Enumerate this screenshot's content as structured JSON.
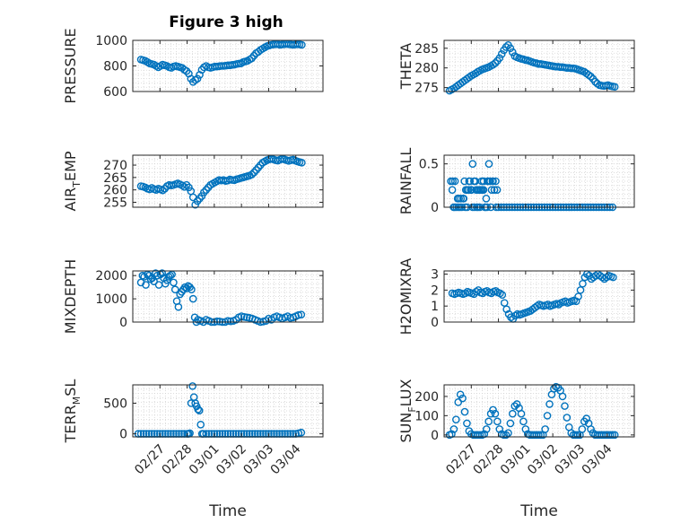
{
  "figure_title": "Figure 3 high",
  "colors": {
    "marker": "#0072bd",
    "axis": "#262626",
    "grid": "#d3d3d3"
  },
  "chart_data": [
    {
      "id": "pressure",
      "type": "scatter",
      "ylabel": "PRESSURE",
      "xlim": [
        0,
        7
      ],
      "ylim": [
        600,
        1000
      ],
      "yticks": [
        600,
        800,
        1000
      ],
      "ytick_labels": [
        "600",
        "800",
        "1000"
      ],
      "x": [
        0.3,
        0.38,
        0.46,
        0.54,
        0.62,
        0.7,
        0.78,
        0.86,
        0.94,
        1.02,
        1.1,
        1.18,
        1.26,
        1.34,
        1.42,
        1.5,
        1.58,
        1.66,
        1.74,
        1.82,
        1.9,
        1.98,
        2.06,
        2.14,
        2.22,
        2.3,
        2.38,
        2.46,
        2.54,
        2.62,
        2.7,
        2.78,
        2.86,
        2.94,
        3.02,
        3.1,
        3.18,
        3.26,
        3.34,
        3.42,
        3.5,
        3.58,
        3.66,
        3.74,
        3.82,
        3.9,
        3.98,
        4.06,
        4.14,
        4.22,
        4.3,
        4.38,
        4.46,
        4.54,
        4.62,
        4.7,
        4.78,
        4.86,
        4.94,
        5.02,
        5.1,
        5.18,
        5.26,
        5.34,
        5.42,
        5.5,
        5.58,
        5.66,
        5.74,
        5.82,
        5.9,
        5.98,
        6.06,
        6.14,
        6.22
      ],
      "y": [
        850,
        845,
        840,
        830,
        820,
        815,
        810,
        800,
        790,
        800,
        810,
        805,
        800,
        790,
        785,
        795,
        800,
        795,
        790,
        785,
        770,
        760,
        740,
        700,
        675,
        690,
        700,
        730,
        770,
        790,
        800,
        790,
        785,
        790,
        795,
        795,
        798,
        800,
        800,
        802,
        805,
        805,
        808,
        810,
        815,
        818,
        820,
        830,
        835,
        840,
        850,
        860,
        880,
        900,
        910,
        925,
        935,
        945,
        955,
        960,
        965,
        968,
        970,
        970,
        965,
        968,
        970,
        972,
        970,
        968,
        965,
        968,
        970,
        968,
        965
      ]
    },
    {
      "id": "theta",
      "type": "scatter",
      "ylabel": "THETA",
      "xlim": [
        0,
        7
      ],
      "ylim": [
        274,
        287
      ],
      "yticks": [
        275,
        280,
        285
      ],
      "ytick_labels": [
        "275",
        "280",
        "285"
      ],
      "x": [
        0.2,
        0.28,
        0.36,
        0.44,
        0.52,
        0.6,
        0.68,
        0.76,
        0.84,
        0.92,
        1.0,
        1.08,
        1.16,
        1.24,
        1.32,
        1.4,
        1.48,
        1.56,
        1.64,
        1.72,
        1.8,
        1.88,
        1.96,
        2.04,
        2.12,
        2.2,
        2.28,
        2.36,
        2.44,
        2.52,
        2.6,
        2.68,
        2.76,
        2.84,
        2.92,
        3.0,
        3.08,
        3.16,
        3.24,
        3.32,
        3.4,
        3.48,
        3.56,
        3.64,
        3.72,
        3.8,
        3.88,
        3.96,
        4.04,
        4.12,
        4.2,
        4.28,
        4.36,
        4.44,
        4.52,
        4.6,
        4.68,
        4.76,
        4.84,
        4.92,
        5.0,
        5.08,
        5.16,
        5.24,
        5.32,
        5.4,
        5.48,
        5.56,
        5.64,
        5.72,
        5.8,
        5.88,
        5.96,
        6.04,
        6.12,
        6.2,
        6.28
      ],
      "y": [
        274.2,
        274.5,
        274.8,
        275.2,
        275.6,
        276,
        276.4,
        276.8,
        277.2,
        277.6,
        278,
        278.3,
        278.6,
        279,
        279.3,
        279.6,
        279.8,
        280,
        280.2,
        280.5,
        280.8,
        281.2,
        281.8,
        282.5,
        283.5,
        284.5,
        285.3,
        285.8,
        285,
        284,
        283,
        282.7,
        282.5,
        282.3,
        282.2,
        282,
        281.9,
        281.7,
        281.5,
        281.3,
        281.2,
        281,
        281,
        280.9,
        280.8,
        280.7,
        280.6,
        280.5,
        280.4,
        280.3,
        280.3,
        280.2,
        280.2,
        280.1,
        280,
        280,
        279.9,
        279.9,
        279.8,
        279.6,
        279.4,
        279.2,
        279,
        278.6,
        278.2,
        277.8,
        277.2,
        276.5,
        276,
        275.6,
        275.5,
        275.4,
        275.5,
        275.6,
        275.4,
        275.3,
        275.2
      ]
    },
    {
      "id": "air_temp",
      "type": "scatter",
      "ylabel": "AIR_TEMP",
      "xlim": [
        0,
        7
      ],
      "ylim": [
        253,
        274
      ],
      "yticks": [
        255,
        260,
        265,
        270
      ],
      "ytick_labels": [
        "255",
        "260",
        "265",
        "270"
      ],
      "x": [
        0.3,
        0.38,
        0.46,
        0.54,
        0.62,
        0.7,
        0.78,
        0.86,
        0.94,
        1.02,
        1.1,
        1.18,
        1.26,
        1.34,
        1.42,
        1.5,
        1.58,
        1.66,
        1.74,
        1.82,
        1.9,
        1.98,
        2.06,
        2.14,
        2.22,
        2.3,
        2.38,
        2.46,
        2.54,
        2.62,
        2.7,
        2.78,
        2.86,
        2.94,
        3.02,
        3.1,
        3.18,
        3.26,
        3.34,
        3.42,
        3.5,
        3.58,
        3.66,
        3.74,
        3.82,
        3.9,
        3.98,
        4.06,
        4.14,
        4.22,
        4.3,
        4.38,
        4.46,
        4.54,
        4.62,
        4.7,
        4.78,
        4.86,
        4.94,
        5.02,
        5.1,
        5.18,
        5.26,
        5.34,
        5.42,
        5.5,
        5.58,
        5.66,
        5.74,
        5.82,
        5.9,
        5.98,
        6.06,
        6.14,
        6.22
      ],
      "y": [
        261.5,
        261.3,
        261,
        260.5,
        260.2,
        260.8,
        260.3,
        260,
        260.5,
        260.2,
        259.8,
        260.5,
        261.5,
        262,
        261.8,
        262,
        262.3,
        262.6,
        262.2,
        261.8,
        261.2,
        262,
        261,
        259.5,
        257,
        254,
        255.5,
        256.5,
        257.5,
        259,
        260,
        261,
        262,
        262.5,
        263,
        263.5,
        264,
        263.8,
        264,
        263.6,
        263.8,
        264.2,
        264,
        263.9,
        264.3,
        264.5,
        264.8,
        265,
        265.3,
        265.5,
        265.8,
        266.2,
        267,
        268,
        269,
        270,
        271,
        271.5,
        272,
        272.3,
        272.5,
        272.3,
        272,
        271.8,
        272.2,
        272.5,
        272.3,
        272,
        271.7,
        272,
        272.2,
        271.8,
        271.5,
        271.2,
        271
      ]
    },
    {
      "id": "rainfall",
      "type": "scatter",
      "ylabel": "RAINFALL",
      "xlim": [
        0,
        7
      ],
      "ylim": [
        0,
        0.6
      ],
      "yticks": [
        0,
        0.5
      ],
      "ytick_labels": [
        "0",
        "0.5"
      ],
      "x": [
        0.25,
        0.32,
        0.38,
        0.45,
        0.52,
        0.58,
        0.65,
        0.72,
        0.78,
        0.85,
        0.92,
        0.98,
        1.05,
        1.12,
        1.18,
        1.25,
        1.32,
        1.38,
        1.45,
        1.52,
        1.58,
        1.65,
        1.72,
        1.78,
        1.85,
        1.92,
        0.4,
        0.55,
        0.7,
        0.85,
        1.0,
        1.15,
        1.3,
        1.45,
        1.6,
        1.75,
        1.9,
        0.62,
        0.8,
        0.95,
        1.1,
        1.25,
        1.4,
        1.55,
        1.7,
        0.3,
        0.9,
        1.2,
        1.5,
        1.8,
        0.35,
        0.75,
        1.05,
        1.35,
        1.65,
        1.95,
        0.5,
        1.45,
        1.0,
        1.6,
        2.0,
        2.1,
        2.2,
        2.3,
        2.4,
        2.5,
        2.6,
        2.7,
        2.8,
        2.9,
        3.0,
        3.1,
        3.2,
        3.3,
        3.4,
        3.5,
        3.6,
        3.7,
        3.8,
        3.9,
        4.0,
        4.1,
        4.2,
        4.3,
        4.4,
        4.5,
        4.6,
        4.7,
        4.8,
        4.9,
        5.0,
        5.1,
        5.2,
        5.3,
        5.4,
        5.5,
        5.6,
        5.7,
        5.8,
        5.9,
        6.0,
        6.1,
        6.2
      ],
      "y": [
        0.3,
        0.3,
        0,
        0,
        0,
        0,
        0,
        0.1,
        0,
        0,
        0.3,
        0.2,
        0,
        0,
        0.2,
        0,
        0,
        0.3,
        0.2,
        0,
        0,
        0.3,
        0,
        0.3,
        0.2,
        0,
        0.3,
        0.1,
        0.1,
        0.2,
        0.2,
        0.3,
        0.2,
        0.3,
        0.3,
        0.2,
        0.3,
        0.1,
        0.2,
        0.3,
        0.3,
        0.2,
        0.2,
        0.1,
        0.3,
        0.2,
        0.2,
        0,
        0,
        0.3,
        0,
        0.3,
        0.5,
        0.2,
        0.5,
        0.2,
        0.1,
        0.3,
        0.2,
        0.3,
        0,
        0,
        0,
        0,
        0,
        0,
        0,
        0,
        0,
        0,
        0,
        0,
        0,
        0,
        0,
        0,
        0,
        0,
        0,
        0,
        0,
        0,
        0,
        0,
        0,
        0,
        0,
        0,
        0,
        0,
        0,
        0,
        0,
        0,
        0,
        0,
        0,
        0,
        0,
        0,
        0,
        0,
        0
      ]
    },
    {
      "id": "mixdepth",
      "type": "scatter",
      "ylabel": "MIXDEPTH",
      "xlim": [
        0,
        7
      ],
      "ylim": [
        0,
        2200
      ],
      "yticks": [
        0,
        1000,
        2000
      ],
      "ytick_labels": [
        "0",
        "1000",
        "2000"
      ],
      "x": [
        0.3,
        0.36,
        0.42,
        0.48,
        0.54,
        0.6,
        0.66,
        0.72,
        0.78,
        0.84,
        0.9,
        0.96,
        1.02,
        1.08,
        1.14,
        1.2,
        1.26,
        1.32,
        1.38,
        1.44,
        1.5,
        1.56,
        1.62,
        1.68,
        1.74,
        1.8,
        1.86,
        1.92,
        1.98,
        2.04,
        2.1,
        2.16,
        2.22,
        2.28,
        2.34,
        2.4,
        2.5,
        2.6,
        2.7,
        2.8,
        2.9,
        3.0,
        3.1,
        3.2,
        3.3,
        3.4,
        3.5,
        3.6,
        3.7,
        3.8,
        3.9,
        4.0,
        4.1,
        4.2,
        4.3,
        4.4,
        4.5,
        4.6,
        4.7,
        4.8,
        4.9,
        5.0,
        5.1,
        5.2,
        5.3,
        5.4,
        5.5,
        5.6,
        5.7,
        5.8,
        5.9,
        6.0,
        6.1,
        6.2
      ],
      "y": [
        1700,
        2000,
        1950,
        1600,
        2050,
        2000,
        1850,
        1900,
        1750,
        2100,
        2000,
        1600,
        2050,
        2100,
        1900,
        1650,
        1800,
        1950,
        2000,
        2050,
        1700,
        1400,
        900,
        650,
        1200,
        1300,
        1400,
        1500,
        1450,
        1550,
        1500,
        1400,
        1000,
        200,
        0,
        100,
        50,
        0,
        100,
        50,
        0,
        0,
        30,
        20,
        0,
        0,
        50,
        30,
        50,
        100,
        200,
        250,
        220,
        200,
        180,
        150,
        100,
        50,
        0,
        20,
        50,
        150,
        100,
        200,
        250,
        200,
        150,
        200,
        250,
        180,
        200,
        250,
        300,
        320
      ]
    },
    {
      "id": "h2omixra",
      "type": "scatter",
      "ylabel": "H2OMIXRA",
      "xlim": [
        0,
        7
      ],
      "ylim": [
        0,
        3.2
      ],
      "yticks": [
        0,
        1,
        2,
        3
      ],
      "ytick_labels": [
        "0",
        "1",
        "2",
        "3"
      ],
      "x": [
        0.3,
        0.38,
        0.46,
        0.54,
        0.62,
        0.7,
        0.78,
        0.86,
        0.94,
        1.02,
        1.1,
        1.18,
        1.26,
        1.34,
        1.42,
        1.5,
        1.58,
        1.66,
        1.74,
        1.82,
        1.9,
        1.98,
        2.06,
        2.14,
        2.22,
        2.3,
        2.38,
        2.46,
        2.54,
        2.62,
        2.7,
        2.78,
        2.86,
        2.94,
        3.02,
        3.1,
        3.18,
        3.26,
        3.34,
        3.42,
        3.5,
        3.58,
        3.66,
        3.74,
        3.82,
        3.9,
        3.98,
        4.06,
        4.14,
        4.22,
        4.3,
        4.38,
        4.46,
        4.54,
        4.62,
        4.7,
        4.78,
        4.86,
        4.94,
        5.02,
        5.1,
        5.18,
        5.26,
        5.34,
        5.42,
        5.5,
        5.58,
        5.66,
        5.74,
        5.82,
        5.9,
        5.98,
        6.06,
        6.14,
        6.22
      ],
      "y": [
        1.8,
        1.75,
        1.8,
        1.85,
        1.8,
        1.75,
        1.8,
        1.9,
        1.85,
        1.8,
        1.75,
        1.9,
        2.0,
        1.85,
        1.8,
        1.9,
        1.95,
        1.85,
        1.8,
        1.9,
        1.95,
        1.85,
        1.8,
        1.7,
        1.2,
        0.8,
        0.5,
        0.3,
        0.2,
        0.4,
        0.5,
        0.45,
        0.5,
        0.55,
        0.6,
        0.65,
        0.7,
        0.8,
        0.9,
        1.0,
        1.1,
        1.05,
        1.0,
        1.05,
        1.1,
        1.0,
        1.05,
        1.1,
        1.15,
        1.1,
        1.2,
        1.25,
        1.3,
        1.2,
        1.25,
        1.3,
        1.35,
        1.3,
        1.6,
        2.0,
        2.4,
        2.8,
        3.0,
        2.9,
        2.7,
        2.8,
        2.9,
        3.0,
        2.9,
        2.8,
        2.7,
        2.8,
        2.9,
        2.85,
        2.8
      ]
    },
    {
      "id": "terr_msl",
      "type": "scatter",
      "ylabel": "TERR_MSL",
      "xlim": [
        0,
        7
      ],
      "ylim": [
        -50,
        800
      ],
      "yticks": [
        0,
        500
      ],
      "ytick_labels": [
        "0",
        "500"
      ],
      "x": [
        0.2,
        0.3,
        0.4,
        0.5,
        0.6,
        0.7,
        0.8,
        0.9,
        1.0,
        1.1,
        1.2,
        1.3,
        1.4,
        1.5,
        1.6,
        1.7,
        1.8,
        1.9,
        2.0,
        2.05,
        2.1,
        2.15,
        2.2,
        2.25,
        2.3,
        2.35,
        2.4,
        2.45,
        2.5,
        2.55,
        2.6,
        2.7,
        2.8,
        2.9,
        3.0,
        3.1,
        3.2,
        3.3,
        3.4,
        3.5,
        3.6,
        3.7,
        3.8,
        3.9,
        4.0,
        4.1,
        4.2,
        4.3,
        4.4,
        4.5,
        4.6,
        4.7,
        4.8,
        4.9,
        5.0,
        5.1,
        5.2,
        5.3,
        5.4,
        5.5,
        5.6,
        5.7,
        5.8,
        5.9,
        6.0,
        6.1,
        6.2
      ],
      "y": [
        0,
        0,
        0,
        0,
        0,
        0,
        0,
        0,
        0,
        0,
        0,
        0,
        0,
        0,
        0,
        0,
        0,
        0,
        0,
        0,
        10,
        500,
        780,
        600,
        500,
        450,
        400,
        380,
        150,
        0,
        0,
        0,
        0,
        0,
        0,
        0,
        0,
        0,
        0,
        0,
        0,
        0,
        0,
        0,
        0,
        0,
        0,
        0,
        0,
        0,
        0,
        0,
        0,
        0,
        0,
        0,
        0,
        0,
        0,
        0,
        0,
        0,
        0,
        0,
        0,
        10,
        20
      ]
    },
    {
      "id": "sun_flux",
      "type": "scatter",
      "ylabel": "SUN_FLUX",
      "xlim": [
        0,
        7
      ],
      "ylim": [
        -10,
        260
      ],
      "yticks": [
        0,
        100,
        200
      ],
      "ytick_labels": [
        "0",
        "100",
        "200"
      ],
      "x": [
        0.2,
        0.28,
        0.36,
        0.44,
        0.52,
        0.6,
        0.68,
        0.76,
        0.84,
        0.92,
        1.0,
        1.08,
        1.16,
        1.24,
        1.32,
        1.4,
        1.48,
        1.56,
        1.64,
        1.72,
        1.8,
        1.88,
        1.96,
        2.04,
        2.12,
        2.2,
        2.28,
        2.36,
        2.44,
        2.52,
        2.6,
        2.68,
        2.76,
        2.84,
        2.92,
        3.0,
        3.08,
        3.16,
        3.24,
        3.32,
        3.4,
        3.48,
        3.56,
        3.64,
        3.72,
        3.8,
        3.88,
        3.96,
        4.04,
        4.12,
        4.2,
        4.28,
        4.36,
        4.44,
        4.52,
        4.6,
        4.68,
        4.76,
        4.84,
        4.92,
        5.0,
        5.08,
        5.16,
        5.24,
        5.32,
        5.4,
        5.48,
        5.56,
        5.64,
        5.72,
        5.8,
        5.88,
        5.96,
        6.04,
        6.12,
        6.2,
        6.28
      ],
      "y": [
        0,
        5,
        30,
        80,
        170,
        210,
        190,
        120,
        60,
        20,
        5,
        0,
        0,
        0,
        0,
        0,
        5,
        30,
        70,
        110,
        130,
        110,
        70,
        30,
        5,
        0,
        0,
        10,
        60,
        110,
        150,
        160,
        140,
        110,
        70,
        30,
        5,
        0,
        0,
        0,
        0,
        0,
        0,
        0,
        30,
        100,
        160,
        210,
        240,
        250,
        245,
        230,
        200,
        150,
        90,
        40,
        10,
        0,
        0,
        0,
        0,
        30,
        70,
        85,
        60,
        30,
        10,
        0,
        0,
        0,
        0,
        0,
        0,
        0,
        0,
        0,
        0
      ]
    }
  ],
  "bottom_axes": {
    "xtick_labels": [
      "02/27",
      "02/28",
      "03/01",
      "03/02",
      "03/03",
      "03/04"
    ],
    "xlabel": "Time"
  }
}
